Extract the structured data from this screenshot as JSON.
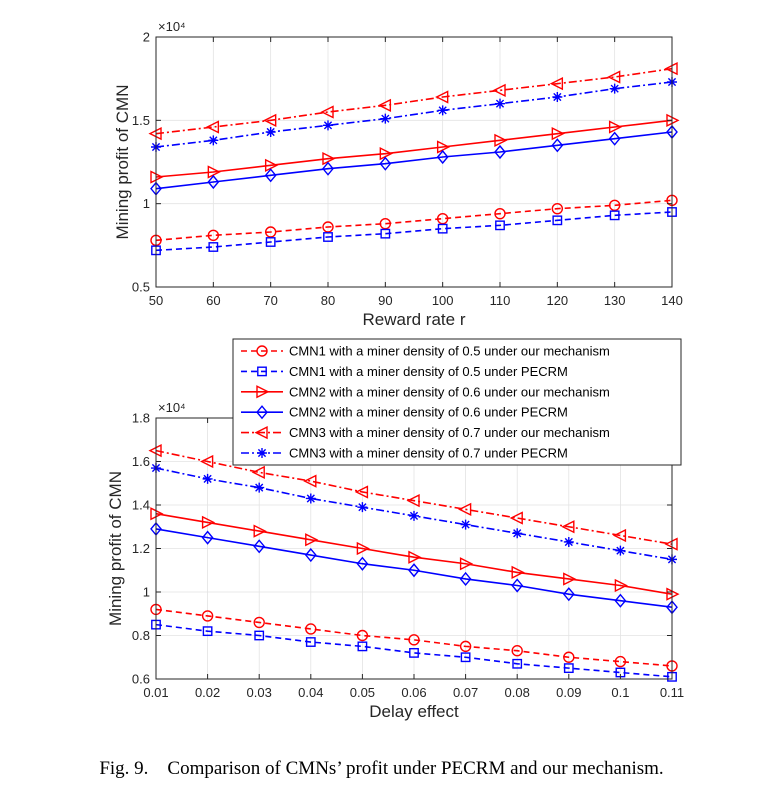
{
  "figure": {
    "caption_label": "Fig. 9.",
    "caption_text": "Comparison of CMNs’ profit under PECRM and our mechanism."
  },
  "legend": {
    "entries": [
      "CMN1 with a miner density of 0.5 under our mechanism",
      "CMN1 with a miner density of 0.5 under PECRM",
      "CMN2 with a miner density of 0.6 under our mechanism",
      "CMN2 with a miner density of 0.6 under PECRM",
      "CMN3 with a miner density of 0.7 under our mechanism",
      "CMN3 with a miner density of 0.7 under PECRM"
    ]
  },
  "chart_data": [
    {
      "type": "line",
      "xlabel": "Reward rate r",
      "ylabel": "Mining profit of CMN",
      "y_exponent": "×10⁴",
      "xlim": [
        50,
        140
      ],
      "ylim": [
        0.5,
        2
      ],
      "grid": true,
      "x": [
        50,
        60,
        70,
        80,
        90,
        100,
        110,
        120,
        130,
        140
      ],
      "xticks": [
        "50",
        "60",
        "70",
        "80",
        "90",
        "100",
        "110",
        "120",
        "130",
        "140"
      ],
      "yticks": [
        0.5,
        1,
        1.5,
        2
      ],
      "yticklabels": [
        "0.5",
        "1",
        "1.5",
        "2"
      ],
      "series": [
        {
          "name": "CMN1 with a miner density of 0.5 under our mechanism",
          "color": "#ff0000",
          "style": "dashed",
          "marker": "circle",
          "values": [
            0.78,
            0.81,
            0.83,
            0.86,
            0.88,
            0.91,
            0.94,
            0.97,
            0.99,
            1.02
          ]
        },
        {
          "name": "CMN1 with a miner density of 0.5 under PECRM",
          "color": "#0000ff",
          "style": "dashed",
          "marker": "square",
          "values": [
            0.72,
            0.74,
            0.77,
            0.8,
            0.82,
            0.85,
            0.87,
            0.9,
            0.93,
            0.95
          ]
        },
        {
          "name": "CMN2 with a miner density of 0.6 under our mechanism",
          "color": "#ff0000",
          "style": "solid",
          "marker": "triangle-right",
          "values": [
            1.16,
            1.19,
            1.23,
            1.27,
            1.3,
            1.34,
            1.38,
            1.42,
            1.46,
            1.5
          ]
        },
        {
          "name": "CMN2 with a miner density of 0.6 under PECRM",
          "color": "#0000ff",
          "style": "solid",
          "marker": "diamond",
          "values": [
            1.09,
            1.13,
            1.17,
            1.21,
            1.24,
            1.28,
            1.31,
            1.35,
            1.39,
            1.43
          ]
        },
        {
          "name": "CMN3 with a miner density of 0.7 under our mechanism",
          "color": "#ff0000",
          "style": "dashdot",
          "marker": "triangle-left",
          "values": [
            1.42,
            1.46,
            1.5,
            1.55,
            1.59,
            1.64,
            1.68,
            1.72,
            1.76,
            1.81
          ]
        },
        {
          "name": "CMN3 with a miner density of 0.7 under PECRM",
          "color": "#0000ff",
          "style": "dashdot",
          "marker": "asterisk",
          "values": [
            1.34,
            1.38,
            1.43,
            1.47,
            1.51,
            1.56,
            1.6,
            1.64,
            1.69,
            1.73
          ]
        }
      ]
    },
    {
      "type": "line",
      "xlabel": "Delay effect",
      "ylabel": "Mining profit of CMN",
      "y_exponent": "×10⁴",
      "xlim": [
        0.01,
        0.11
      ],
      "ylim": [
        0.6,
        1.8
      ],
      "grid": true,
      "x": [
        0.01,
        0.02,
        0.03,
        0.04,
        0.05,
        0.06,
        0.07,
        0.08,
        0.09,
        0.1,
        0.11
      ],
      "xticks": [
        "0.01",
        "0.02",
        "0.03",
        "0.04",
        "0.05",
        "0.06",
        "0.07",
        "0.08",
        "0.09",
        "0.1",
        "0.11"
      ],
      "yticks": [
        0.6,
        0.8,
        1,
        1.2,
        1.4,
        1.6,
        1.8
      ],
      "yticklabels": [
        "0.6",
        "0.8",
        "1",
        "1.2",
        "1.4",
        "1.6",
        "1.8"
      ],
      "series": [
        {
          "name": "CMN1 with a miner density of 0.5 under our mechanism",
          "color": "#ff0000",
          "style": "dashed",
          "marker": "circle",
          "values": [
            0.92,
            0.89,
            0.86,
            0.83,
            0.8,
            0.78,
            0.75,
            0.73,
            0.7,
            0.68,
            0.66
          ]
        },
        {
          "name": "CMN1 with a miner density of 0.5 under PECRM",
          "color": "#0000ff",
          "style": "dashed",
          "marker": "square",
          "values": [
            0.85,
            0.82,
            0.8,
            0.77,
            0.75,
            0.72,
            0.7,
            0.67,
            0.65,
            0.63,
            0.61
          ]
        },
        {
          "name": "CMN2 with a miner density of 0.6 under our mechanism",
          "color": "#ff0000",
          "style": "solid",
          "marker": "triangle-right",
          "values": [
            1.36,
            1.32,
            1.28,
            1.24,
            1.2,
            1.16,
            1.13,
            1.09,
            1.06,
            1.03,
            0.99
          ]
        },
        {
          "name": "CMN2 with a miner density of 0.6 under PECRM",
          "color": "#0000ff",
          "style": "solid",
          "marker": "diamond",
          "values": [
            1.29,
            1.25,
            1.21,
            1.17,
            1.13,
            1.1,
            1.06,
            1.03,
            0.99,
            0.96,
            0.93
          ]
        },
        {
          "name": "CMN3 with a miner density of 0.7 under our mechanism",
          "color": "#ff0000",
          "style": "dashdot",
          "marker": "triangle-left",
          "values": [
            1.65,
            1.6,
            1.55,
            1.51,
            1.46,
            1.42,
            1.38,
            1.34,
            1.3,
            1.26,
            1.22
          ]
        },
        {
          "name": "CMN3 with a miner density of 0.7 under PECRM",
          "color": "#0000ff",
          "style": "dashdot",
          "marker": "asterisk",
          "values": [
            1.57,
            1.52,
            1.48,
            1.43,
            1.39,
            1.35,
            1.31,
            1.27,
            1.23,
            1.19,
            1.15
          ]
        }
      ]
    }
  ]
}
